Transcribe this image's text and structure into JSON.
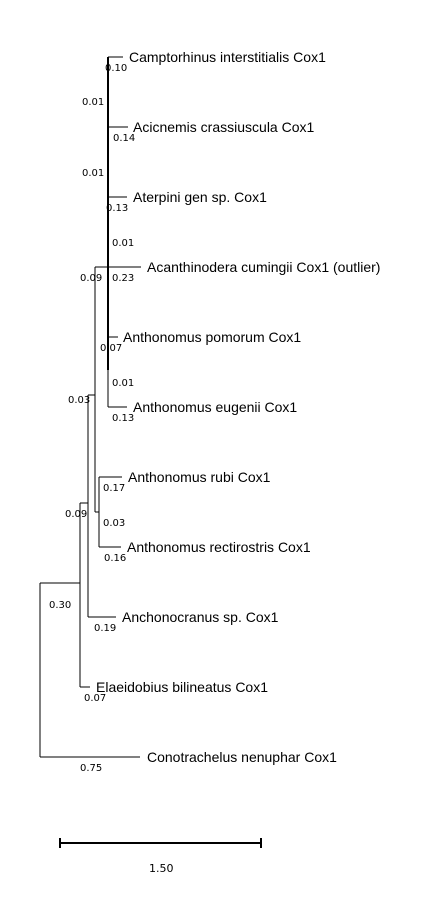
{
  "taxa": [
    {
      "name": "Camptorhinus interstitialis Cox1",
      "branch_length": "0.10"
    },
    {
      "name": "Acicnemis crassiuscula Cox1",
      "branch_length": "0.14"
    },
    {
      "name": "Aterpini gen sp. Cox1",
      "branch_length": "0.13"
    },
    {
      "name": "Acanthinodera cumingii Cox1 (outlier)",
      "branch_length": "0.23"
    },
    {
      "name": "Anthonomus pomorum Cox1",
      "branch_length": "0.07"
    },
    {
      "name": "Anthonomus eugenii Cox1",
      "branch_length": "0.13"
    },
    {
      "name": "Anthonomus rubi Cox1",
      "branch_length": "0.17"
    },
    {
      "name": "Anthonomus rectirostris Cox1",
      "branch_length": "0.16"
    },
    {
      "name": "Anchonocranus sp. Cox1",
      "branch_length": "0.19"
    },
    {
      "name": "Elaeidobius bilineatus Cox1",
      "branch_length": "0.07"
    },
    {
      "name": "Conotrachelus nenuphar Cox1",
      "branch_length": "0.75"
    }
  ],
  "internal_branch_lengths": [
    "0.01",
    "0.01",
    "0.01",
    "0.09",
    "0.01",
    "0.03",
    "0.03",
    "0.09",
    "0.30"
  ],
  "scale_bar": {
    "label": "1.50",
    "value": 1.5
  }
}
